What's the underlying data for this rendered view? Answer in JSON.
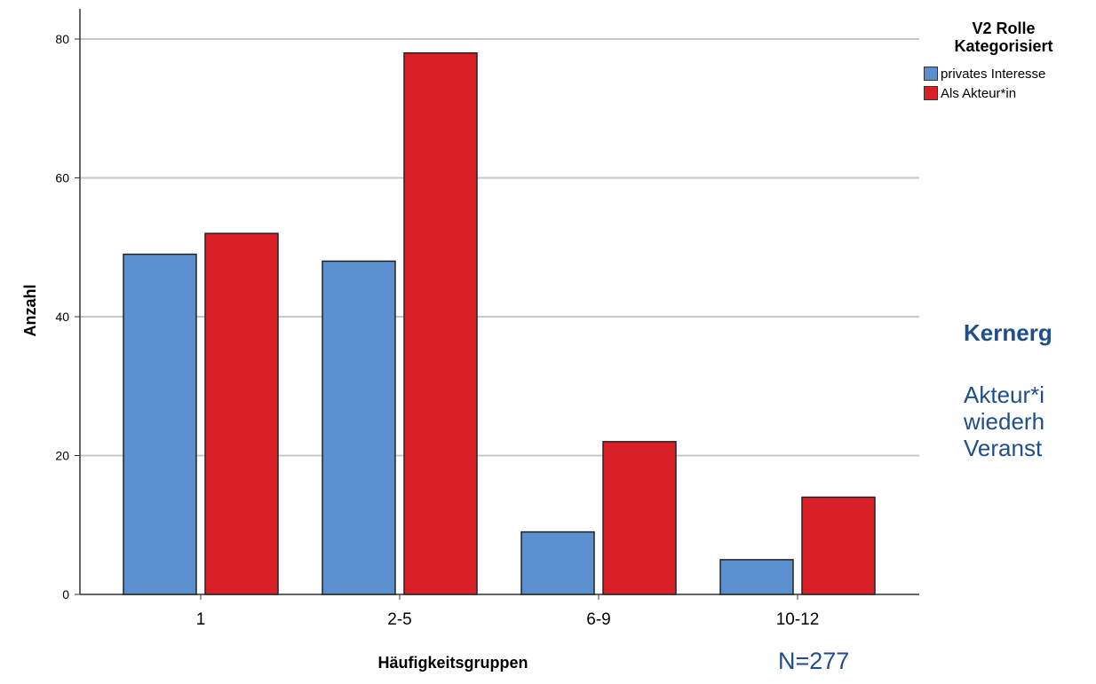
{
  "chart_data": {
    "type": "bar",
    "xlabel": "Häufigkeitsgruppen",
    "ylabel": "Anzahl",
    "ylim": [
      0,
      80
    ],
    "yticks": [
      0,
      20,
      40,
      60,
      80
    ],
    "grid": true,
    "categories": [
      "1",
      "2-5",
      "6-9",
      "10-12"
    ],
    "series": [
      {
        "name": "privates Interesse",
        "values": [
          49,
          48,
          9,
          5
        ],
        "color": "#5B8FCD"
      },
      {
        "name": "Als Akteur*in",
        "values": [
          52,
          78,
          22,
          14
        ],
        "color": "#D92027"
      }
    ],
    "legend": {
      "title_line1": "V2 Rolle",
      "title_line2": "Kategorisiert",
      "placement": "top-right"
    }
  },
  "sample_size": "N=277",
  "side_panel": {
    "heading": "Kernerg",
    "lines": [
      "Akteur*i",
      "wiederh",
      "Veranst"
    ],
    "color": "#1F4E8C"
  }
}
